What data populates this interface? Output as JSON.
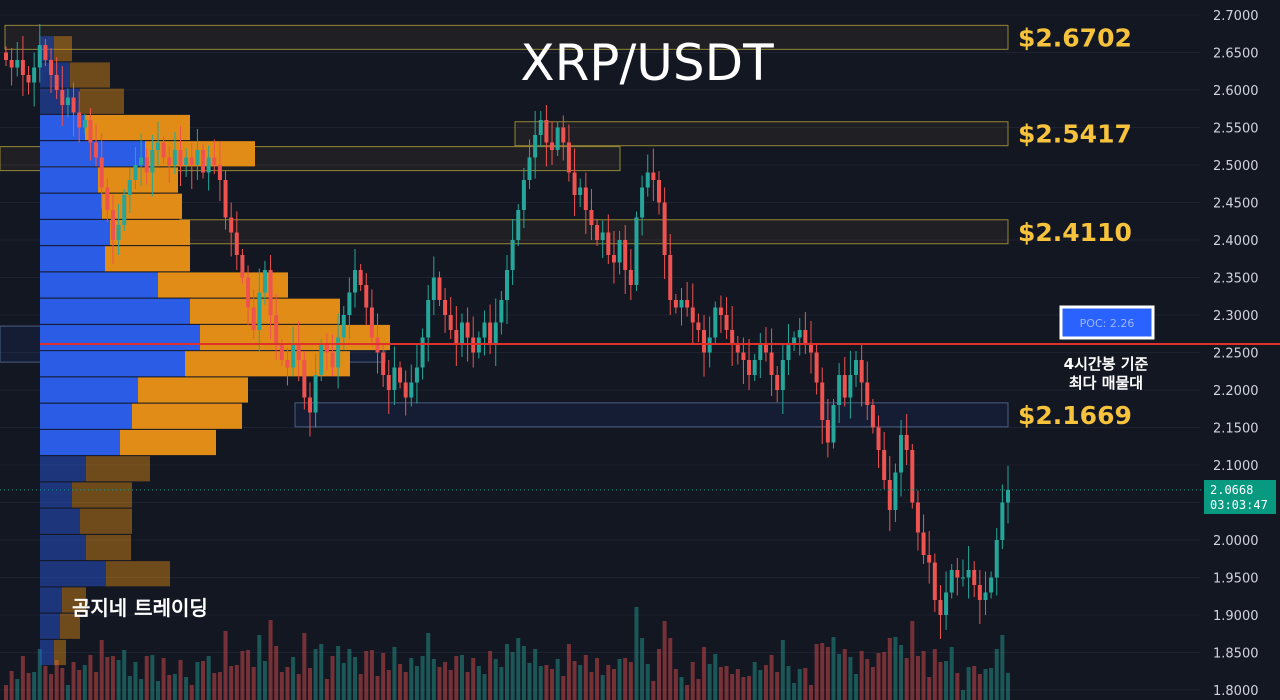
{
  "chart_data": {
    "type": "candlestick",
    "title": "XRP/USDT",
    "watermark": "곰지네 트레이딩",
    "ylim": [
      1.78,
      2.72
    ],
    "y_ticks": [
      "2.7000",
      "2.6500",
      "2.6000",
      "2.5500",
      "2.5000",
      "2.4500",
      "2.4000",
      "2.3500",
      "2.3000",
      "2.2500",
      "2.2000",
      "2.1500",
      "2.1000",
      "2.0500",
      "2.0000",
      "1.9500",
      "1.9000",
      "1.8500",
      "1.8000"
    ],
    "levels": [
      {
        "label": "$2.6702",
        "value": 2.6702
      },
      {
        "label": "$2.5417",
        "value": 2.5417
      },
      {
        "label": "$2.4110",
        "value": 2.411
      },
      {
        "label": "$2.1669",
        "value": 2.1669
      }
    ],
    "poc": {
      "label": "POC: 2.26",
      "value": 2.26,
      "annotation_line1": "4시간봉 기준",
      "annotation_line2": "최다 매물대"
    },
    "current_price": {
      "price": "2.0668",
      "countdown": "03:03:47",
      "value": 2.0668
    },
    "volume_profile": [
      {
        "price": 2.655,
        "buy": 14,
        "sell": 18
      },
      {
        "price": 2.62,
        "buy": 30,
        "sell": 40
      },
      {
        "price": 2.585,
        "buy": 40,
        "sell": 44
      },
      {
        "price": 2.55,
        "buy": 45,
        "sell": 105
      },
      {
        "price": 2.515,
        "buy": 105,
        "sell": 110
      },
      {
        "price": 2.48,
        "buy": 58,
        "sell": 80
      },
      {
        "price": 2.445,
        "buy": 62,
        "sell": 80
      },
      {
        "price": 2.41,
        "buy": 70,
        "sell": 80
      },
      {
        "price": 2.375,
        "buy": 65,
        "sell": 85
      },
      {
        "price": 2.34,
        "buy": 118,
        "sell": 130
      },
      {
        "price": 2.305,
        "buy": 150,
        "sell": 150
      },
      {
        "price": 2.27,
        "buy": 160,
        "sell": 190
      },
      {
        "price": 2.235,
        "buy": 145,
        "sell": 165
      },
      {
        "price": 2.2,
        "buy": 98,
        "sell": 110
      },
      {
        "price": 2.165,
        "buy": 92,
        "sell": 110
      },
      {
        "price": 2.13,
        "buy": 80,
        "sell": 96
      },
      {
        "price": 2.095,
        "buy": 46,
        "sell": 64
      },
      {
        "price": 2.06,
        "buy": 32,
        "sell": 60
      },
      {
        "price": 2.025,
        "buy": 40,
        "sell": 52
      },
      {
        "price": 1.99,
        "buy": 46,
        "sell": 45
      },
      {
        "price": 1.955,
        "buy": 66,
        "sell": 64
      },
      {
        "price": 1.92,
        "buy": 22,
        "sell": 24
      },
      {
        "price": 1.885,
        "buy": 20,
        "sell": 20
      },
      {
        "price": 1.85,
        "buy": 14,
        "sell": 12
      }
    ],
    "closes": [
      2.64,
      2.63,
      2.64,
      2.62,
      2.61,
      2.63,
      2.66,
      2.64,
      2.62,
      2.6,
      2.58,
      2.59,
      2.57,
      2.55,
      2.56,
      2.53,
      2.51,
      2.47,
      2.44,
      2.4,
      2.42,
      2.46,
      2.48,
      2.5,
      2.51,
      2.49,
      2.52,
      2.53,
      2.51,
      2.5,
      2.52,
      2.5,
      2.51,
      2.5,
      2.52,
      2.49,
      2.51,
      2.5,
      2.48,
      2.43,
      2.41,
      2.38,
      2.35,
      2.31,
      2.28,
      2.33,
      2.36,
      2.3,
      2.26,
      2.24,
      2.23,
      2.26,
      2.24,
      2.19,
      2.17,
      2.22,
      2.26,
      2.25,
      2.23,
      2.27,
      2.3,
      2.33,
      2.36,
      2.34,
      2.31,
      2.27,
      2.25,
      2.22,
      2.2,
      2.23,
      2.21,
      2.19,
      2.21,
      2.23,
      2.27,
      2.32,
      2.35,
      2.32,
      2.3,
      2.28,
      2.26,
      2.29,
      2.27,
      2.25,
      2.27,
      2.29,
      2.26,
      2.29,
      2.32,
      2.36,
      2.4,
      2.44,
      2.48,
      2.51,
      2.54,
      2.56,
      2.53,
      2.52,
      2.55,
      2.53,
      2.49,
      2.46,
      2.47,
      2.44,
      2.42,
      2.4,
      2.41,
      2.38,
      2.37,
      2.4,
      2.36,
      2.34,
      2.43,
      2.47,
      2.49,
      2.48,
      2.45,
      2.38,
      2.32,
      2.31,
      2.32,
      2.31,
      2.29,
      2.28,
      2.25,
      2.27,
      2.31,
      2.3,
      2.28,
      2.26,
      2.25,
      2.24,
      2.22,
      2.24,
      2.26,
      2.25,
      2.22,
      2.2,
      2.24,
      2.26,
      2.27,
      2.28,
      2.26,
      2.25,
      2.21,
      2.16,
      2.13,
      2.18,
      2.22,
      2.19,
      2.22,
      2.24,
      2.21,
      2.18,
      2.15,
      2.12,
      2.08,
      2.04,
      2.09,
      2.14,
      2.12,
      2.05,
      2.01,
      1.98,
      1.97,
      1.92,
      1.9,
      1.93,
      1.96,
      1.95,
      1.95,
      1.96,
      1.94,
      1.92,
      1.93,
      1.95,
      2.0,
      2.05,
      2.0668
    ],
    "price_axis_side": "right"
  }
}
